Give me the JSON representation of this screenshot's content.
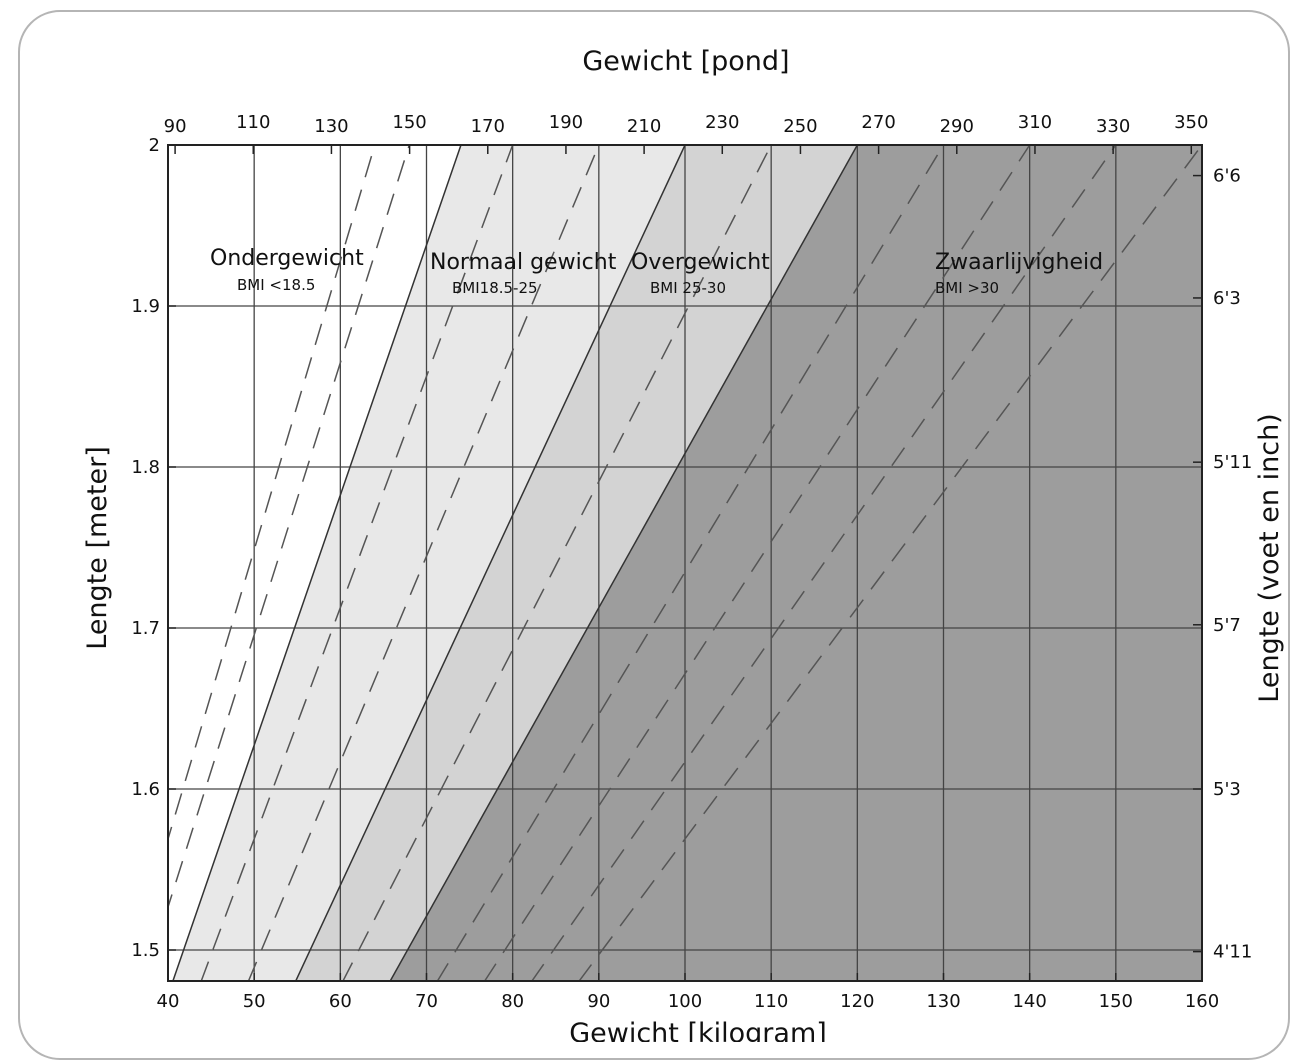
{
  "chart_data": {
    "type": "area",
    "title": "",
    "xlabel": "Gewicht [kilogram]",
    "ylabel": "Lengte [meter]",
    "x2label": "Gewicht [pond]",
    "y2label": "Lengte (voet en inch)",
    "xlim": [
      40,
      160
    ],
    "ylim": [
      1.48,
      2.0
    ],
    "grid": true,
    "x_ticks": [
      40,
      50,
      60,
      70,
      80,
      90,
      100,
      110,
      120,
      130,
      140,
      150,
      160
    ],
    "y_ticks": [
      1.5,
      1.6,
      1.7,
      1.8,
      1.9,
      2.0
    ],
    "y_tick_labels": [
      "1.5",
      "1.6",
      "1.7",
      "1.8",
      "1.9",
      "2"
    ],
    "top_ticks_lb": [
      90,
      110,
      130,
      150,
      170,
      190,
      210,
      230,
      250,
      270,
      290,
      310,
      330,
      350
    ],
    "right_ticks": [
      {
        "label": "4'11",
        "height_m": 1.499
      },
      {
        "label": "5'3",
        "height_m": 1.6
      },
      {
        "label": "5'7",
        "height_m": 1.702
      },
      {
        "label": "5'11",
        "height_m": 1.803
      },
      {
        "label": "6'3",
        "height_m": 1.905
      },
      {
        "label": "6'6",
        "height_m": 1.981
      }
    ],
    "bmi_boundaries": [
      18.5,
      25,
      30
    ],
    "dashed_bmi_lines": [
      16,
      17,
      20,
      22.5,
      27.5,
      32.5,
      35,
      37.5,
      40
    ],
    "zones": [
      {
        "name": "Ondergewicht",
        "bmi_label": "BMI <18.5",
        "bmi_min": 0,
        "bmi_max": 18.5,
        "color": "#ffffff"
      },
      {
        "name": "Normaal gewicht",
        "bmi_label": "BMI18.5-25",
        "bmi_min": 18.5,
        "bmi_max": 25,
        "color": "#e8e8e8"
      },
      {
        "name": "Overgewicht",
        "bmi_label": "BMI 25-30",
        "bmi_min": 25,
        "bmi_max": 30,
        "color": "#d3d3d3"
      },
      {
        "name": "Zwaarlijvigheid",
        "bmi_label": "BMI >30",
        "bmi_min": 30,
        "bmi_max": 100,
        "color": "#9d9d9d"
      }
    ],
    "zone_label_height_m": 1.93
  }
}
